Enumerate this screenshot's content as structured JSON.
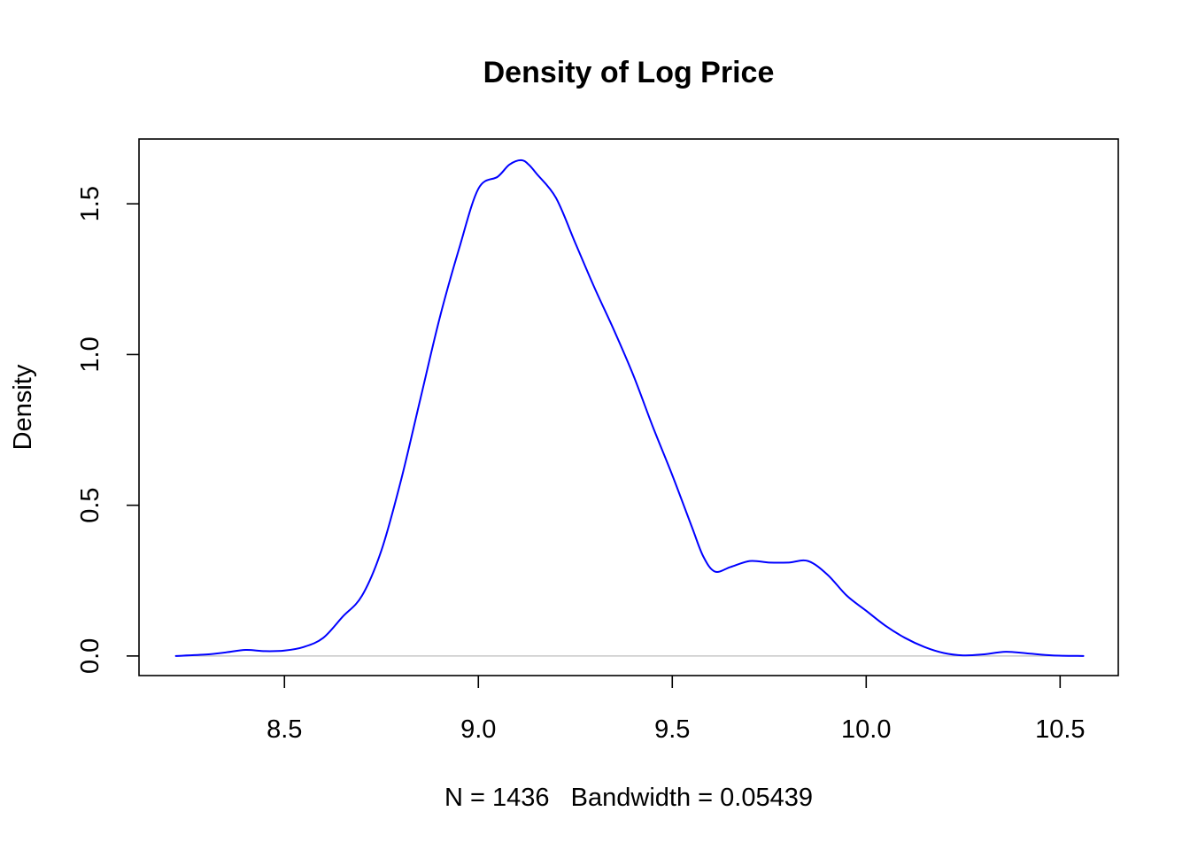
{
  "chart_data": {
    "type": "line",
    "title": "Density of Log Price",
    "xlabel": "N = 1436   Bandwidth = 0.05439",
    "ylabel": "Density",
    "xlim": [
      8.125,
      10.65
    ],
    "ylim": [
      -0.065,
      1.715
    ],
    "xticks": [
      8.5,
      9.0,
      9.5,
      10.0,
      10.5
    ],
    "xtick_labels": [
      "8.5",
      "9.0",
      "9.5",
      "10.0",
      "10.5"
    ],
    "yticks": [
      0.0,
      0.5,
      1.0,
      1.5
    ],
    "ytick_labels": [
      "0.0",
      "0.5",
      "1.0",
      "1.5"
    ],
    "grid": false,
    "baseline": 0,
    "baseline_color": "#bebebe",
    "series": [
      {
        "color": "#0000ff",
        "x": [
          8.22,
          8.3,
          8.35,
          8.4,
          8.45,
          8.5,
          8.55,
          8.6,
          8.65,
          8.7,
          8.75,
          8.8,
          8.85,
          8.9,
          8.95,
          9.0,
          9.05,
          9.08,
          9.11,
          9.13,
          9.15,
          9.2,
          9.25,
          9.3,
          9.35,
          9.4,
          9.45,
          9.5,
          9.55,
          9.58,
          9.61,
          9.65,
          9.7,
          9.75,
          9.8,
          9.85,
          9.9,
          9.95,
          10.0,
          10.05,
          10.1,
          10.15,
          10.2,
          10.25,
          10.3,
          10.36,
          10.42,
          10.48,
          10.56
        ],
        "values": [
          0.0,
          0.005,
          0.012,
          0.02,
          0.016,
          0.018,
          0.03,
          0.06,
          0.13,
          0.2,
          0.35,
          0.58,
          0.85,
          1.12,
          1.35,
          1.55,
          1.59,
          1.63,
          1.645,
          1.63,
          1.6,
          1.52,
          1.37,
          1.22,
          1.08,
          0.93,
          0.76,
          0.6,
          0.43,
          0.33,
          0.28,
          0.295,
          0.315,
          0.31,
          0.31,
          0.315,
          0.27,
          0.2,
          0.15,
          0.1,
          0.06,
          0.03,
          0.01,
          0.002,
          0.005,
          0.014,
          0.008,
          0.002,
          0.0
        ]
      }
    ]
  }
}
